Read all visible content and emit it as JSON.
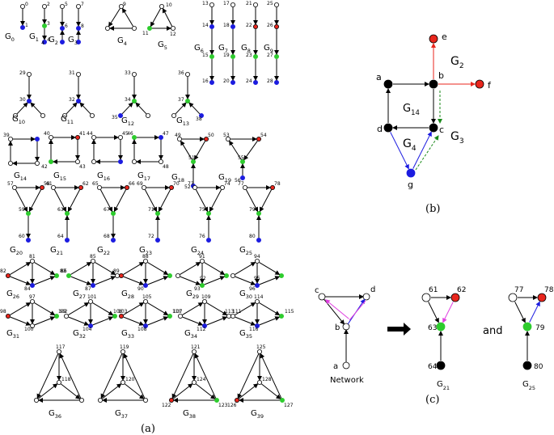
{
  "captions": {
    "a": "(a)",
    "b": "(b)",
    "c": "(c)"
  },
  "colors": {
    "red": "#e8261d",
    "green": "#2ecc2e",
    "blue": "#1c1ce0",
    "magenta": "#e040e0",
    "dark_green": "#1a8a1a"
  },
  "panel_a": {
    "graph_names": [
      "G0",
      "G1",
      "G2",
      "G3",
      "G4",
      "G5",
      "G6",
      "G7",
      "G8",
      "G9",
      "G10",
      "G11",
      "G12",
      "G13",
      "G14",
      "G15",
      "G16",
      "G17",
      "G18",
      "G19",
      "G20",
      "G21",
      "G22",
      "G23",
      "G24",
      "G25",
      "G26",
      "G27",
      "G28",
      "G29",
      "G30",
      "G31",
      "G32",
      "G33",
      "G34",
      "G35",
      "G36",
      "G37",
      "G38",
      "G39"
    ],
    "node_numbers": [
      "0",
      "1",
      "2",
      "3",
      "4",
      "5",
      "6",
      "7",
      "8",
      "9",
      "10",
      "11",
      "12",
      "13",
      "14",
      "15",
      "16",
      "17",
      "18",
      "19",
      "20",
      "21",
      "22",
      "23",
      "24",
      "25",
      "26",
      "27",
      "28",
      "29",
      "30",
      "31",
      "32",
      "33",
      "34",
      "35",
      "36",
      "37",
      "38",
      "39",
      "40",
      "41",
      "42",
      "43",
      "44",
      "45",
      "46",
      "47",
      "48",
      "49",
      "50",
      "51",
      "52",
      "53",
      "54",
      "55",
      "56",
      "57",
      "58",
      "59",
      "60",
      "61",
      "62",
      "63",
      "64",
      "65",
      "66",
      "67",
      "68",
      "69",
      "70",
      "71",
      "72",
      "73",
      "74",
      "75",
      "76",
      "77",
      "78",
      "79",
      "80",
      "81",
      "82",
      "83",
      "84",
      "85",
      "86",
      "87",
      "88",
      "89",
      "90",
      "91",
      "92",
      "93",
      "94",
      "95",
      "96",
      "97",
      "98",
      "99",
      "100",
      "101",
      "102",
      "103",
      "104",
      "105",
      "106",
      "107",
      "108",
      "109",
      "110",
      "111",
      "112",
      "113",
      "114",
      "115",
      "116",
      "117",
      "118",
      "119",
      "120",
      "121",
      "122",
      "123",
      "124",
      "125",
      "126",
      "127",
      "128"
    ]
  },
  "panel_b": {
    "node_labels": {
      "a": "a",
      "b": "b",
      "c": "c",
      "d": "d",
      "e": "e",
      "f": "f",
      "g": "g"
    },
    "subgraph_labels": {
      "G14": "G14",
      "G2": "G2",
      "G4": "G4",
      "G3": "G3"
    }
  },
  "panel_c": {
    "network_label": "Network",
    "and_label": "and",
    "network_nodes": {
      "a": "a",
      "b": "b",
      "c": "c",
      "d": "d"
    },
    "g21_nodes": {
      "61": "61",
      "62": "62",
      "63": "63",
      "64": "64"
    },
    "g25_nodes": {
      "77": "77",
      "78": "78",
      "79": "79",
      "80": "80"
    },
    "g21_name": "G21",
    "g25_name": "G25"
  }
}
